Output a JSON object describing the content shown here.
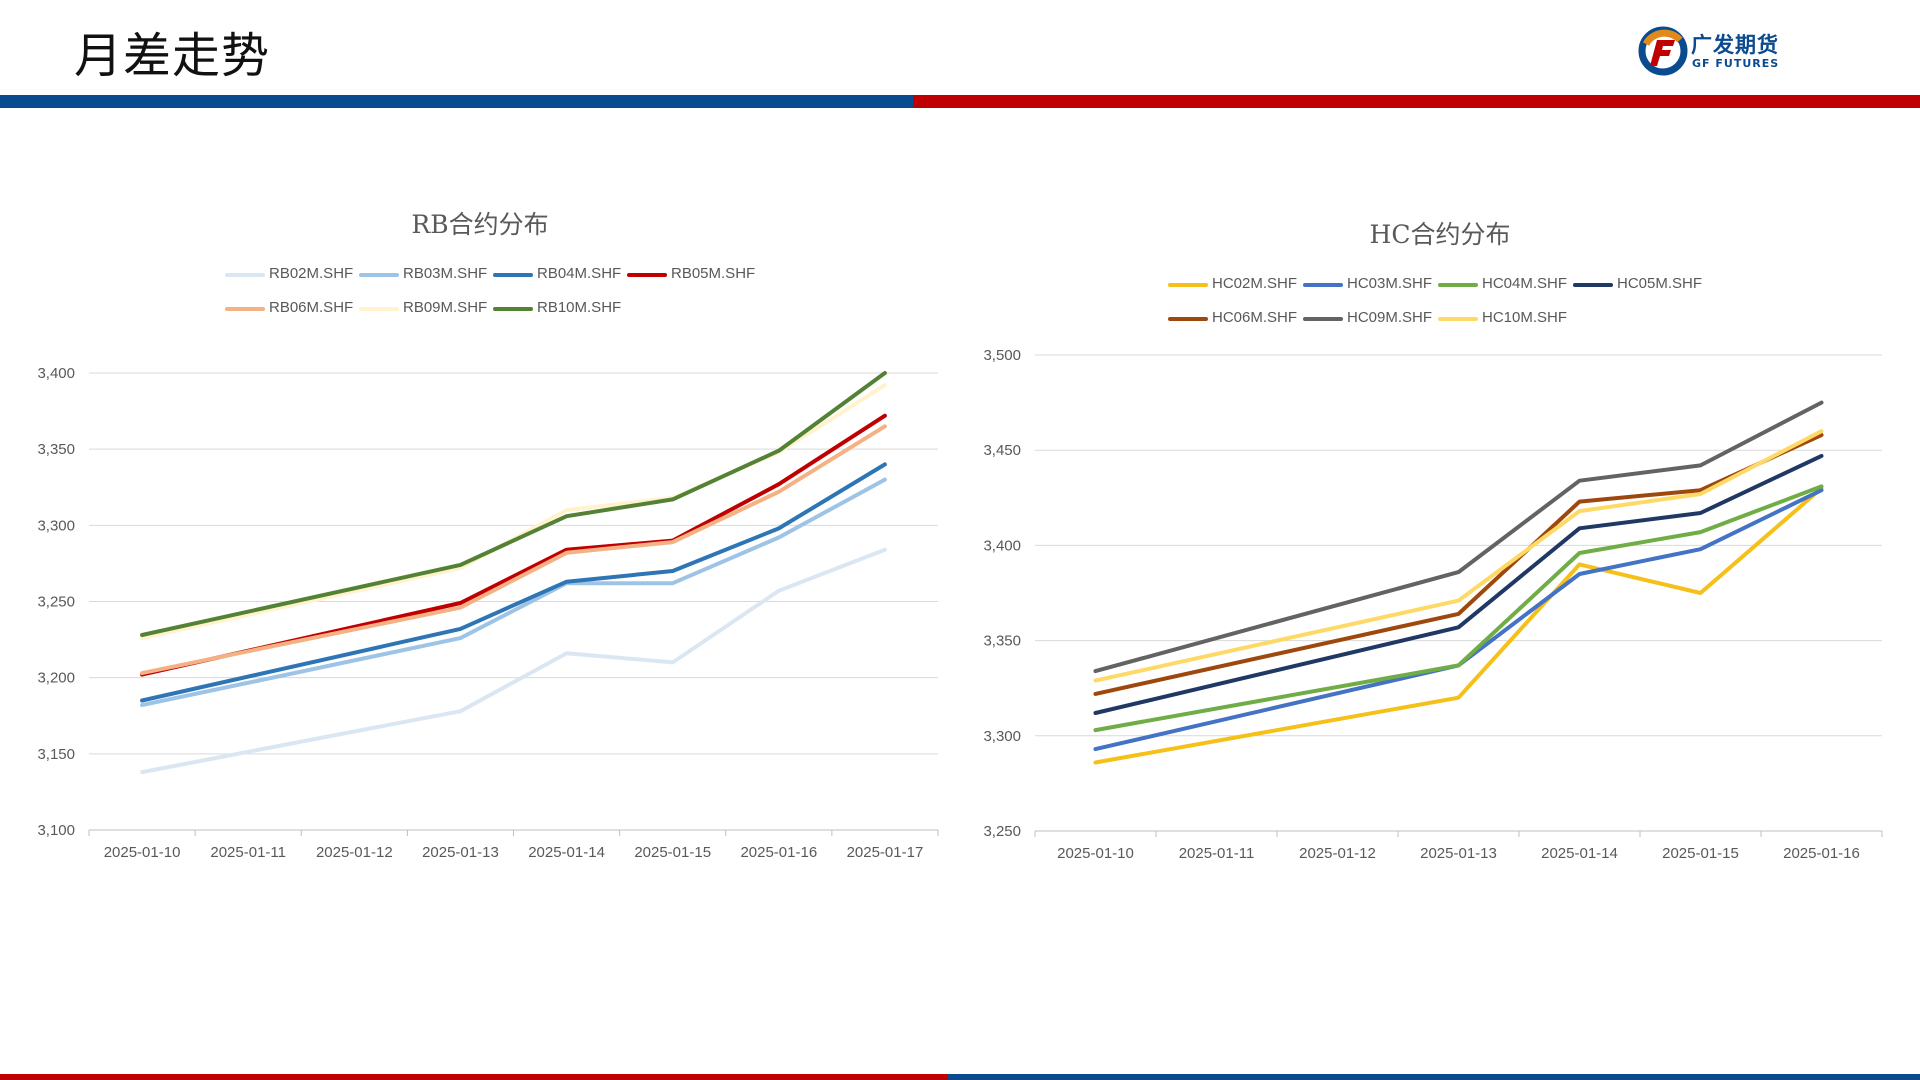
{
  "header": {
    "title": "月差走势",
    "logo_cn": "广发期货",
    "logo_en": "GF FUTURES"
  },
  "colors": {
    "brand_blue": "#0a4a8f",
    "brand_red": "#c00000"
  },
  "chart_data": [
    {
      "type": "line",
      "title": "RB合约分布",
      "x": [
        "2025-01-10",
        "2025-01-11",
        "2025-01-12",
        "2025-01-13",
        "2025-01-14",
        "2025-01-15",
        "2025-01-16",
        "2025-01-17"
      ],
      "ylim": [
        3100,
        3400
      ],
      "yticks": [
        "3,100",
        "3,150",
        "3,200",
        "3,250",
        "3,300",
        "3,350",
        "3,400"
      ],
      "grid": true,
      "legend_position": "top",
      "series": [
        {
          "name": "RB02M.SHF",
          "color": "#dae7f3",
          "values": [
            3138,
            null,
            null,
            3178,
            3216,
            3210,
            3257,
            3284
          ]
        },
        {
          "name": "RB03M.SHF",
          "color": "#9dc3e6",
          "values": [
            3182,
            null,
            null,
            3226,
            3262,
            3262,
            3292,
            3330
          ]
        },
        {
          "name": "RB04M.SHF",
          "color": "#2e75b6",
          "values": [
            3185,
            null,
            null,
            3232,
            3263,
            3270,
            3298,
            3340
          ]
        },
        {
          "name": "RB05M.SHF",
          "color": "#c00000",
          "values": [
            3202,
            null,
            null,
            3249,
            3284,
            3290,
            3327,
            3372
          ]
        },
        {
          "name": "RB06M.SHF",
          "color": "#f4b183",
          "values": [
            3203,
            null,
            null,
            3246,
            3282,
            3289,
            3322,
            3365
          ]
        },
        {
          "name": "RB09M.SHF",
          "color": "#fff2cc",
          "values": [
            3226,
            null,
            null,
            3272,
            3310,
            3318,
            3348,
            3392
          ]
        },
        {
          "name": "RB10M.SHF",
          "color": "#548235",
          "values": [
            3228,
            null,
            null,
            3274,
            3306,
            3317,
            3349,
            3400
          ]
        }
      ]
    },
    {
      "type": "line",
      "title": "HC合约分布",
      "x": [
        "2025-01-10",
        "2025-01-11",
        "2025-01-12",
        "2025-01-13",
        "2025-01-14",
        "2025-01-15",
        "2025-01-16"
      ],
      "ylim": [
        3250,
        3500
      ],
      "yticks": [
        "3,250",
        "3,300",
        "3,350",
        "3,400",
        "3,450",
        "3,500"
      ],
      "grid": true,
      "legend_position": "top",
      "series": [
        {
          "name": "HC02M.SHF",
          "color": "#f5c018",
          "values": [
            3286,
            null,
            null,
            3320,
            3390,
            3375,
            3430
          ]
        },
        {
          "name": "HC03M.SHF",
          "color": "#4472c4",
          "values": [
            3293,
            null,
            null,
            3337,
            3385,
            3398,
            3429
          ]
        },
        {
          "name": "HC04M.SHF",
          "color": "#70ad47",
          "values": [
            3303,
            null,
            null,
            3337,
            3396,
            3407,
            3431
          ]
        },
        {
          "name": "HC05M.SHF",
          "color": "#203864",
          "values": [
            3312,
            null,
            null,
            3357,
            3409,
            3417,
            3447
          ]
        },
        {
          "name": "HC06M.SHF",
          "color": "#9e480e",
          "values": [
            3322,
            null,
            null,
            3364,
            3423,
            3429,
            3458
          ]
        },
        {
          "name": "HC09M.SHF",
          "color": "#636363",
          "values": [
            3334,
            null,
            null,
            3386,
            3434,
            3442,
            3475
          ]
        },
        {
          "name": "HC10M.SHF",
          "color": "#ffd966",
          "values": [
            3329,
            null,
            null,
            3371,
            3418,
            3427,
            3460
          ]
        }
      ]
    }
  ]
}
